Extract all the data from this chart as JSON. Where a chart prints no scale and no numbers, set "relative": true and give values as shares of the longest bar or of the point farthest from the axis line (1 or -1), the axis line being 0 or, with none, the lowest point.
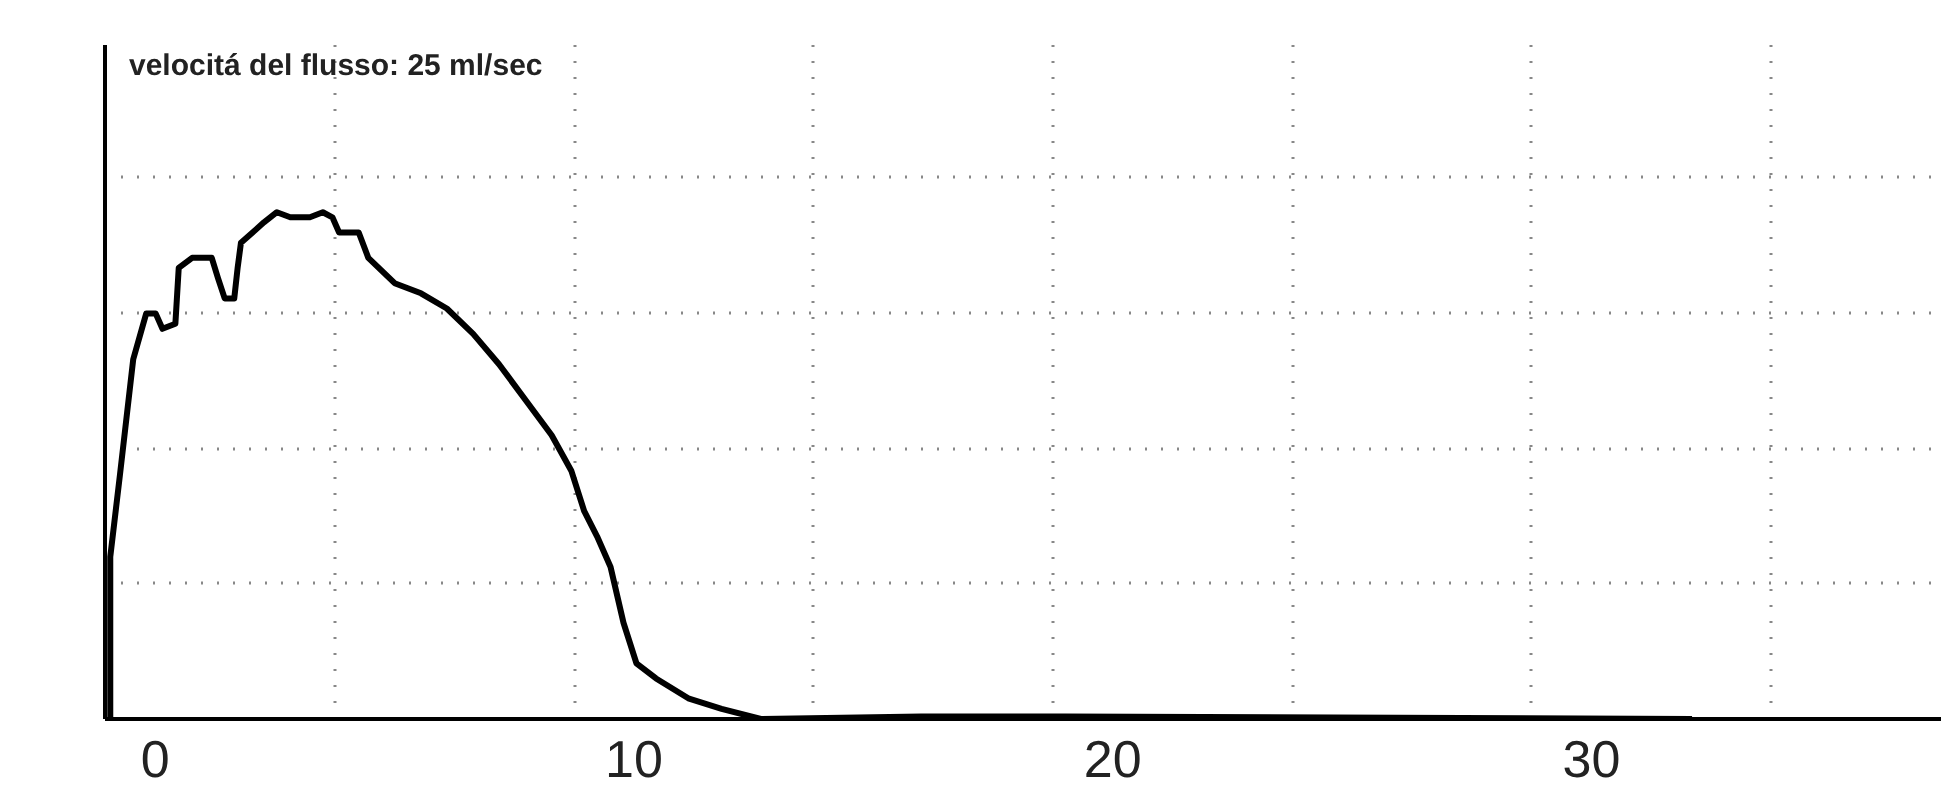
{
  "chart_data": {
    "type": "line",
    "relative": true,
    "annotations": [
      "velocitá del flusso: 25 ml/sec"
    ],
    "xlim": [
      -1.05,
      37.3
    ],
    "xticks": [
      0,
      10,
      20,
      30,
      {
        "value": 3.75,
        "label": null
      },
      {
        "value": 8.75,
        "label": null
      },
      {
        "value": 13.75,
        "label": null
      },
      {
        "value": 18.75,
        "label": null
      },
      {
        "value": 23.75,
        "label": null
      },
      {
        "value": 28.75,
        "label": null
      },
      {
        "value": 33.75,
        "label": null
      }
    ],
    "tick_labels": "x",
    "grid": true,
    "marker": "none",
    "line_style": "solid",
    "series": [
      {
        "color": "#000000",
        "x": [
          -0.95,
          -0.94,
          -0.94,
          -0.74,
          -0.46,
          -0.19,
          0.01,
          0.15,
          0.42,
          0.49,
          0.77,
          1.18,
          1.31,
          1.45,
          1.65,
          1.72,
          1.79,
          2.27,
          2.54,
          2.82,
          3.23,
          3.5,
          3.7,
          3.84,
          4.25,
          4.45,
          5.0,
          5.55,
          6.09,
          6.64,
          7.18,
          7.73,
          8.28,
          8.69,
          8.96,
          9.23,
          9.51,
          9.78,
          10.05,
          10.46,
          11.15,
          11.83,
          12.65,
          16.0,
          19.0,
          32.1
        ],
        "values": [
          0,
          0,
          0.32,
          0.48,
          0.71,
          0.8,
          0.8,
          0.77,
          0.78,
          0.89,
          0.91,
          0.91,
          0.87,
          0.83,
          0.83,
          0.89,
          0.94,
          0.98,
          1.0,
          0.99,
          0.99,
          1.0,
          0.99,
          0.96,
          0.96,
          0.91,
          0.86,
          0.84,
          0.81,
          0.76,
          0.7,
          0.63,
          0.56,
          0.49,
          0.41,
          0.36,
          0.3,
          0.19,
          0.11,
          0.08,
          0.04,
          0.02,
          0,
          0.005,
          0.005,
          0
        ]
      }
    ]
  }
}
